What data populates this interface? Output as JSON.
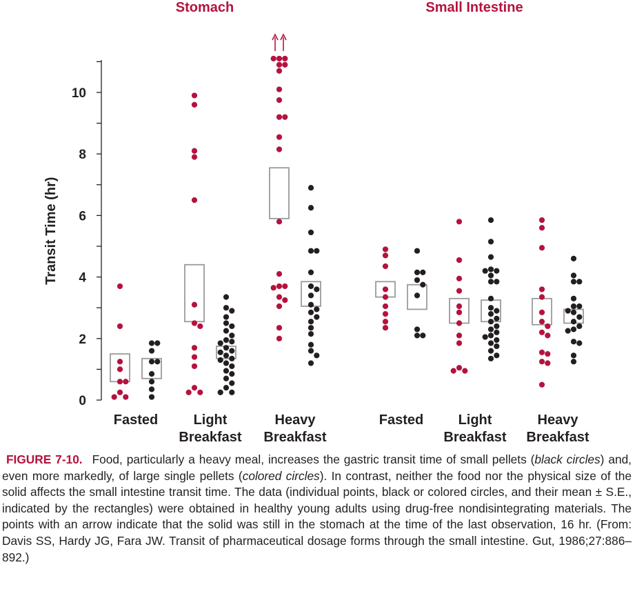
{
  "chart_data": {
    "type": "scatter",
    "ylabel": "Transit Time (hr)",
    "ylim": [
      0,
      11
    ],
    "yticks": [
      "0",
      "2",
      "4",
      "6",
      "8",
      "10"
    ],
    "colors": {
      "large": "#b5123e",
      "small": "#231f20",
      "mean_box": "#9a9a9a"
    },
    "panels": [
      {
        "title": "Stomach",
        "groups": [
          {
            "label_lines": [
              "Fasted",
              ""
            ],
            "large": [
              3.7,
              2.4,
              1.25,
              1.0,
              0.6,
              0.6,
              0.25,
              0.1,
              0.1
            ],
            "large_box": [
              0.6,
              1.5
            ],
            "small": [
              1.85,
              1.85,
              1.6,
              1.25,
              1.25,
              0.85,
              0.6,
              0.35,
              0.1
            ],
            "small_box": [
              0.7,
              1.35
            ]
          },
          {
            "label_lines": [
              "Light",
              "Breakfast"
            ],
            "large": [
              9.9,
              9.6,
              8.1,
              7.9,
              6.5,
              3.1,
              2.5,
              2.4,
              1.7,
              1.4,
              1.1,
              0.4,
              0.25,
              0.25
            ],
            "large_box": [
              2.55,
              4.4
            ],
            "small": [
              3.35,
              3.0,
              2.9,
              2.7,
              2.5,
              2.4,
              2.25,
              2.1,
              1.95,
              1.9,
              1.85,
              1.7,
              1.6,
              1.55,
              1.45,
              1.35,
              1.3,
              1.2,
              1.1,
              0.95,
              0.85,
              0.7,
              0.55,
              0.4,
              0.25,
              0.25
            ],
            "small_box": [
              1.35,
              1.75
            ]
          },
          {
            "label_lines": [
              "Heavy",
              "Breakfast"
            ],
            "large": [
              11.1,
              11.1,
              11.1,
              10.9,
              10.9,
              10.7,
              10.1,
              9.75,
              9.2,
              9.2,
              8.55,
              8.15,
              5.8,
              4.1,
              3.7,
              3.7,
              3.65,
              3.35,
              3.25,
              3.05,
              2.35,
              2.0
            ],
            "large_box": [
              5.9,
              7.55
            ],
            "large_arrows": 2,
            "small": [
              6.9,
              6.25,
              5.45,
              4.85,
              4.85,
              4.15,
              3.7,
              3.6,
              3.4,
              3.1,
              2.95,
              2.85,
              2.7,
              2.55,
              2.35,
              2.15,
              1.8,
              1.6,
              1.45,
              1.2
            ],
            "small_box": [
              3.05,
              3.85
            ]
          }
        ]
      },
      {
        "title": "Small Intestine",
        "groups": [
          {
            "label_lines": [
              "Fasted",
              ""
            ],
            "large": [
              4.9,
              4.7,
              4.35,
              3.6,
              3.35,
              3.05,
              2.8,
              2.55,
              2.35
            ],
            "large_box": [
              3.35,
              3.85
            ],
            "small": [
              4.85,
              4.15,
              4.15,
              3.9,
              3.75,
              3.4,
              2.3,
              2.1,
              2.1
            ],
            "small_box": [
              2.95,
              3.75
            ]
          },
          {
            "label_lines": [
              "Light",
              "Breakfast"
            ],
            "large": [
              5.8,
              4.55,
              3.95,
              3.55,
              3.05,
              2.85,
              2.5,
              2.1,
              1.85,
              1.05,
              0.95,
              0.95
            ],
            "large_box": [
              2.5,
              3.3
            ],
            "small": [
              5.85,
              5.15,
              4.65,
              4.25,
              4.2,
              4.2,
              4.05,
              3.85,
              3.85,
              3.3,
              3.0,
              2.9,
              2.8,
              2.65,
              2.55,
              2.4,
              2.3,
              2.2,
              2.1,
              2.05,
              1.95,
              1.85,
              1.75,
              1.6,
              1.45,
              1.35
            ],
            "small_box": [
              2.55,
              3.25
            ]
          },
          {
            "label_lines": [
              "Heavy",
              "Breakfast"
            ],
            "large": [
              5.85,
              5.6,
              4.95,
              3.6,
              3.35,
              2.85,
              2.55,
              2.4,
              2.2,
              2.1,
              1.55,
              1.5,
              1.25,
              1.2,
              0.5
            ],
            "large_box": [
              2.45,
              3.3
            ],
            "small": [
              4.6,
              4.05,
              3.85,
              3.85,
              3.3,
              3.05,
              3.05,
              2.9,
              2.85,
              2.7,
              2.55,
              2.4,
              2.3,
              2.25,
              1.9,
              1.85,
              1.45,
              1.25
            ],
            "small_box": [
              2.5,
              2.95
            ]
          }
        ]
      }
    ]
  },
  "caption": {
    "figure_label": "FIGURE 7-10.",
    "part1": "Food, particularly a heavy meal, increases the gastric transit time of small pellets (",
    "black_circles": "black circles",
    "part2": ") and, even more markedly, of large single pellets (",
    "colored_circles": "colored circles",
    "part3": "). In contrast, neither the food nor the physical size of the solid affects the small intestine transit time. The data (individual points, black or colored circles, and their mean ± S.E., indicated by the rectangles) were obtained in healthy young adults using drug-free nondisintegrating materials. The points with an arrow indicate that the solid was still in the stomach at the time of the last observation, 16 hr. (From: Davis SS, Hardy JG, Fara JW. Transit of pharmaceutical dosage forms through the small intestine. Gut, 1986;27:886–892.)"
  }
}
